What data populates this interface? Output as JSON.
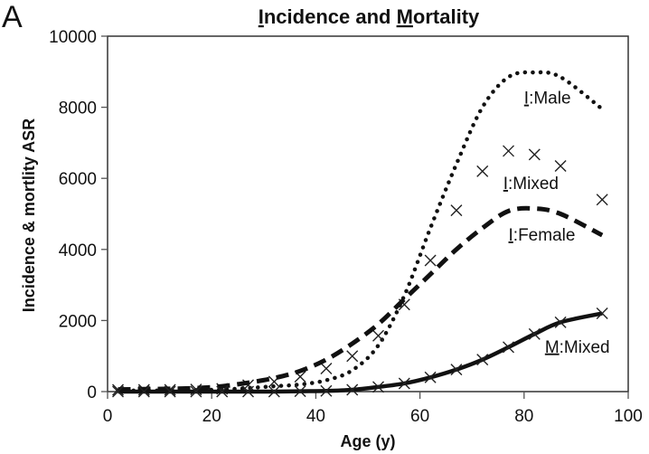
{
  "chart_data": {
    "type": "line",
    "panel_label": "A",
    "title_parts": [
      {
        "text": "I",
        "underline": true
      },
      {
        "text": "ncidence and ",
        "underline": false
      },
      {
        "text": "M",
        "underline": true
      },
      {
        "text": "ortality",
        "underline": false
      }
    ],
    "title": "Incidence and Mortality",
    "xlabel": "Age (y)",
    "ylabel": "Incidence & mortlity ASR",
    "xlim": [
      0,
      100
    ],
    "ylim": [
      0,
      10000
    ],
    "xticks": [
      0,
      20,
      40,
      60,
      80,
      100
    ],
    "yticks": [
      0,
      2000,
      4000,
      6000,
      8000,
      10000
    ],
    "grid": false,
    "x": [
      2,
      7,
      12,
      17,
      22,
      27,
      32,
      37,
      42,
      47,
      52,
      57,
      62,
      67,
      72,
      77,
      82,
      87,
      95
    ],
    "series": [
      {
        "name": "I:Male",
        "label_prefix": "I",
        "label_rest": ":Male",
        "style": "dotted",
        "values": [
          30,
          30,
          30,
          40,
          60,
          100,
          150,
          200,
          320,
          600,
          1300,
          2700,
          4600,
          6400,
          8000,
          8850,
          8980,
          8850,
          7950
        ]
      },
      {
        "name": "I:Mixed",
        "label_prefix": "I",
        "label_rest": ":Mixed",
        "style": "markers-x",
        "values": [
          50,
          50,
          50,
          60,
          80,
          180,
          280,
          420,
          650,
          1000,
          1570,
          2450,
          3690,
          5100,
          6200,
          6770,
          6670,
          6350,
          5400
        ]
      },
      {
        "name": "I:Female",
        "label_prefix": "I",
        "label_rest": ":Female",
        "style": "dashed",
        "values": [
          60,
          70,
          80,
          100,
          150,
          250,
          380,
          580,
          900,
          1350,
          1900,
          2600,
          3300,
          4000,
          4600,
          5080,
          5150,
          5000,
          4400
        ]
      },
      {
        "name": "M:Mixed",
        "label_prefix": "M",
        "label_rest": ":Mixed",
        "style": "solid-with-x",
        "values": [
          0,
          0,
          0,
          0,
          0,
          0,
          0,
          10,
          20,
          50,
          130,
          230,
          400,
          620,
          900,
          1250,
          1620,
          1950,
          2200
        ]
      }
    ],
    "annotations": [
      {
        "series": "I:Male",
        "at": [
          80,
          8100
        ]
      },
      {
        "series": "I:Mixed",
        "at": [
          76,
          5700
        ]
      },
      {
        "series": "I:Female",
        "at": [
          77,
          4250
        ]
      },
      {
        "series": "M:Mixed",
        "at": [
          84,
          1100
        ]
      }
    ]
  }
}
